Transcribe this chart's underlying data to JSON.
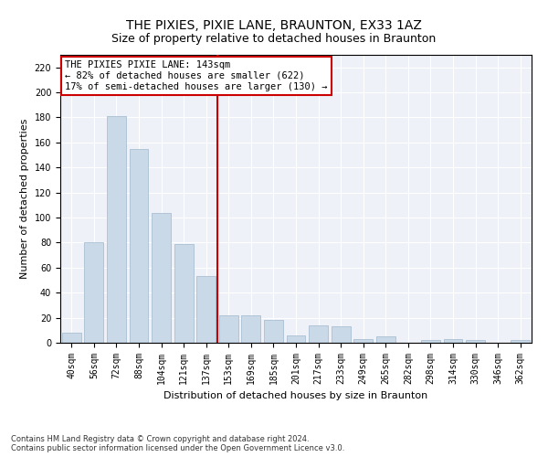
{
  "title": "THE PIXIES, PIXIE LANE, BRAUNTON, EX33 1AZ",
  "subtitle": "Size of property relative to detached houses in Braunton",
  "xlabel": "Distribution of detached houses by size in Braunton",
  "ylabel": "Number of detached properties",
  "categories": [
    "40sqm",
    "56sqm",
    "72sqm",
    "88sqm",
    "104sqm",
    "121sqm",
    "137sqm",
    "153sqm",
    "169sqm",
    "185sqm",
    "201sqm",
    "217sqm",
    "233sqm",
    "249sqm",
    "265sqm",
    "282sqm",
    "298sqm",
    "314sqm",
    "330sqm",
    "346sqm",
    "362sqm"
  ],
  "values": [
    8,
    80,
    181,
    155,
    104,
    79,
    53,
    22,
    22,
    18,
    6,
    14,
    13,
    3,
    5,
    0,
    2,
    3,
    2,
    0,
    2
  ],
  "bar_color": "#c9d9e8",
  "bar_edge_color": "#a0b8cc",
  "vline_x": 6.5,
  "vline_color": "#cc0000",
  "annotation_box_text": "THE PIXIES PIXIE LANE: 143sqm\n← 82% of detached houses are smaller (622)\n17% of semi-detached houses are larger (130) →",
  "ylim": [
    0,
    230
  ],
  "yticks": [
    0,
    20,
    40,
    60,
    80,
    100,
    120,
    140,
    160,
    180,
    200,
    220
  ],
  "footnote": "Contains HM Land Registry data © Crown copyright and database right 2024.\nContains public sector information licensed under the Open Government Licence v3.0.",
  "title_fontsize": 10,
  "subtitle_fontsize": 9,
  "label_fontsize": 8,
  "tick_fontsize": 7,
  "annotation_fontsize": 7.5,
  "footnote_fontsize": 6,
  "bg_color": "#eef2f8",
  "fig_bg_color": "#ffffff"
}
